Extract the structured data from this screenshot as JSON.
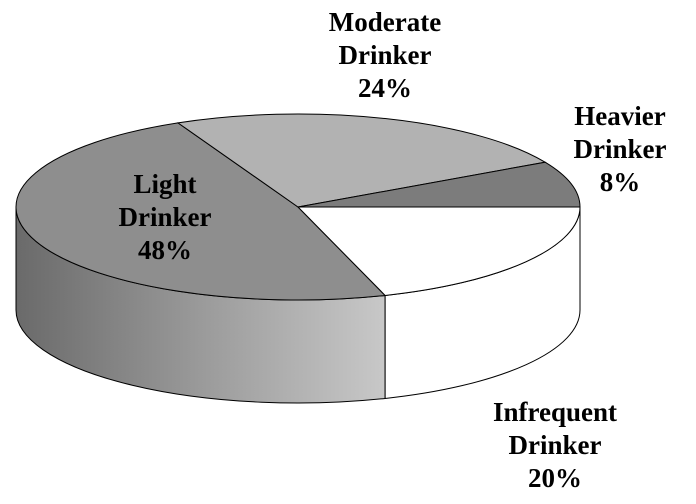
{
  "chart_data": {
    "type": "pie",
    "categories": [
      "Light Drinker",
      "Moderate Drinker",
      "Heavier Drinker",
      "Infrequent Drinker"
    ],
    "values": [
      48,
      24,
      8,
      20
    ],
    "value_labels": [
      "48%",
      "24%",
      "8%",
      "20%"
    ],
    "colors": [
      "#8e8e8e",
      "#b2b2b2",
      "#7c7c7c",
      "#ffffff"
    ]
  }
}
